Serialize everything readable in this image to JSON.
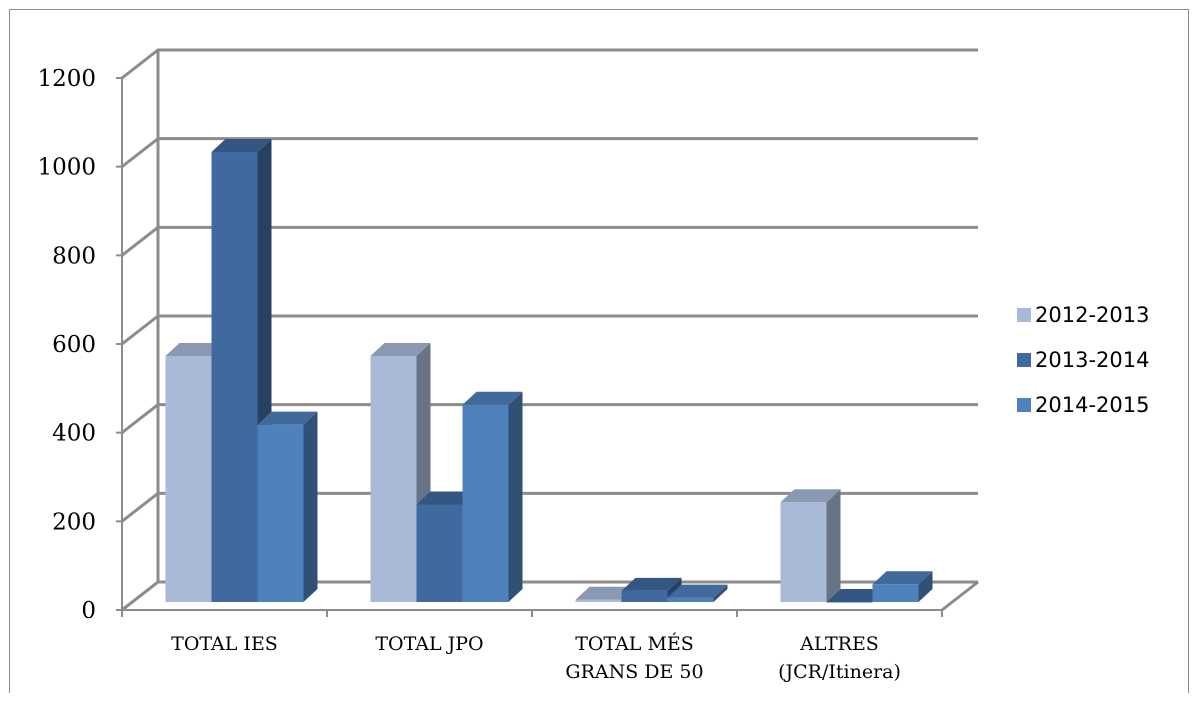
{
  "chart_data": {
    "type": "bar",
    "title": "",
    "xlabel": "",
    "ylabel": "",
    "categories": [
      [
        "TOTAL IES"
      ],
      [
        "TOTAL JPO"
      ],
      [
        "TOTAL MÉS",
        "GRANS DE 50"
      ],
      [
        "ALTRES",
        "(JCR/Itinera)"
      ]
    ],
    "series": [
      {
        "name": "2012-2013",
        "values": [
          555,
          555,
          5,
          225
        ],
        "color": "#a9b9d8"
      },
      {
        "name": "2013-2014",
        "values": [
          1015,
          220,
          25,
          0
        ],
        "color": "#40699f"
      },
      {
        "name": "2014-2015",
        "values": [
          400,
          445,
          10,
          40
        ],
        "color": "#4f81bd"
      }
    ],
    "yticks": [
      0,
      200,
      400,
      600,
      800,
      1000,
      1200
    ],
    "ylim": [
      0,
      1200
    ],
    "grid": true,
    "legend_position": "right",
    "style": "3d-clustered-column"
  }
}
